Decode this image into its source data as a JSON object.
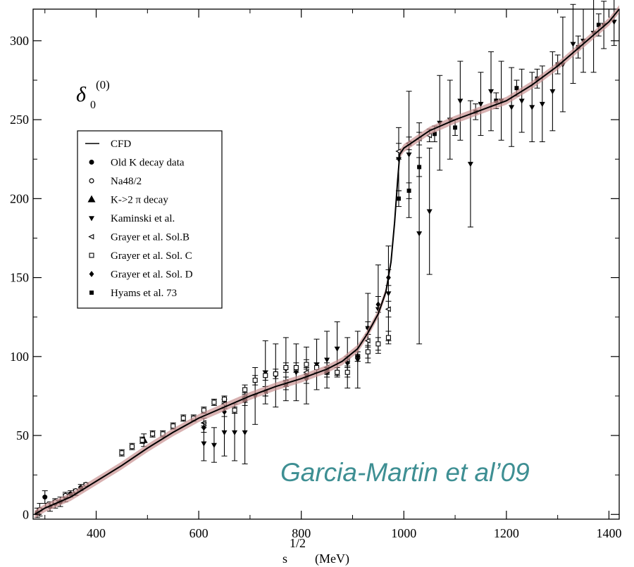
{
  "chart_data": {
    "type": "scatter",
    "title": "",
    "ylabel": "δ₀⁽⁰⁾",
    "xlabel": "s^1/2 (MeV)",
    "xlim": [
      277,
      1420
    ],
    "ylim": [
      -3,
      320
    ],
    "x_ticks": [
      400,
      600,
      800,
      1000,
      1200,
      1400
    ],
    "y_ticks": [
      0,
      50,
      100,
      150,
      200,
      250,
      300
    ],
    "annotation": "Garcia-Martin et al’09",
    "legend_position": "upper-left",
    "legend": [
      {
        "symbol": "line",
        "label": "CFD"
      },
      {
        "symbol": "filled-circle",
        "label": "Old K decay data"
      },
      {
        "symbol": "open-circle",
        "label": "Na48/2"
      },
      {
        "symbol": "filled-triangle-up",
        "label": "K->2 π  decay"
      },
      {
        "symbol": "filled-triangle-down",
        "label": "Kaminski et al."
      },
      {
        "symbol": "open-triangle-left",
        "label": "Grayer et al. Sol.B"
      },
      {
        "symbol": "open-square",
        "label": "Grayer et al. Sol. C"
      },
      {
        "symbol": "filled-diamond",
        "label": "Grayer et al. Sol. D"
      },
      {
        "symbol": "filled-square",
        "label": "Hyams et al. 73"
      }
    ],
    "cfd_curve": {
      "name": "CFD",
      "x": [
        280,
        300,
        350,
        400,
        450,
        500,
        550,
        600,
        650,
        700,
        750,
        800,
        850,
        880,
        910,
        930,
        950,
        965,
        975,
        982,
        988,
        992,
        1000,
        1050,
        1100,
        1150,
        1200,
        1250,
        1300,
        1350,
        1400,
        1420
      ],
      "y": [
        0,
        4,
        11,
        21,
        31,
        42,
        52,
        61,
        68,
        75,
        81,
        86,
        92,
        97,
        105,
        115,
        127,
        141,
        160,
        185,
        212,
        228,
        232,
        243,
        250,
        256,
        262,
        272,
        284,
        298,
        312,
        320
      ]
    },
    "series": [
      {
        "name": "Old K decay data",
        "marker": "filled-circle",
        "x": [
          285,
          290,
          300,
          310,
          320,
          330,
          340,
          350,
          360,
          370
        ],
        "y": [
          1,
          3,
          11,
          5,
          7,
          8,
          11,
          13,
          14,
          17
        ],
        "err": [
          3,
          4,
          4,
          3,
          3,
          3,
          3,
          2,
          2,
          2
        ]
      },
      {
        "name": "Na48/2",
        "marker": "open-circle",
        "x": [
          290,
          305,
          320,
          340,
          360,
          380
        ],
        "y": [
          3,
          6,
          8,
          12,
          15,
          19
        ],
        "err": [
          1,
          1,
          1,
          1,
          1,
          1
        ]
      },
      {
        "name": "K->2 π  decay",
        "marker": "filled-triangle-up",
        "x": [
          493
        ],
        "y": [
          47
        ],
        "err": [
          4
        ]
      },
      {
        "name": "Kaminski et al.",
        "marker": "filled-triangle-down",
        "x": [
          610,
          630,
          650,
          670,
          690,
          710,
          730,
          750,
          770,
          790,
          810,
          830,
          850,
          870,
          890,
          910,
          930,
          950,
          970,
          990,
          1010,
          1030,
          1050,
          1070,
          1090,
          1110,
          1130,
          1150,
          1170,
          1190,
          1210,
          1230,
          1250,
          1270,
          1290,
          1310,
          1330,
          1350,
          1370,
          1390,
          1410
        ],
        "y": [
          45,
          44,
          52,
          52,
          52,
          75,
          90,
          88,
          92,
          90,
          88,
          95,
          98,
          105,
          96,
          98,
          118,
          130,
          140,
          225,
          228,
          178,
          192,
          248,
          250,
          262,
          222,
          260,
          268,
          262,
          258,
          262,
          258,
          260,
          268,
          285,
          298,
          300,
          305,
          310,
          312
        ],
        "err": [
          11,
          11,
          15,
          18,
          20,
          18,
          20,
          20,
          20,
          18,
          18,
          16,
          18,
          17,
          16,
          18,
          22,
          28,
          30,
          20,
          40,
          70,
          40,
          30,
          25,
          25,
          40,
          20,
          25,
          25,
          25,
          20,
          22,
          24,
          25,
          30,
          25,
          20,
          25,
          15,
          15
        ]
      },
      {
        "name": "Grayer et al. Sol.B",
        "marker": "open-triangle-left",
        "x": [
          610,
          650,
          690,
          730,
          770,
          810,
          850,
          890,
          930,
          970,
          990,
          1010,
          1030,
          1050
        ],
        "y": [
          58,
          70,
          74,
          78,
          84,
          90,
          93,
          97,
          110,
          130,
          230,
          235,
          238,
          240
        ],
        "err": [
          3,
          3,
          3,
          3,
          3,
          3,
          3,
          3,
          4,
          5,
          5,
          4,
          4,
          4
        ]
      },
      {
        "name": "Grayer et al. Sol. C",
        "marker": "open-square",
        "x": [
          450,
          470,
          490,
          510,
          530,
          550,
          570,
          590,
          610,
          630,
          650,
          670,
          690,
          710,
          730,
          750,
          770,
          790,
          810,
          830,
          850,
          870,
          890,
          910,
          930,
          950,
          970
        ],
        "y": [
          39,
          43,
          47,
          51,
          51,
          56,
          61,
          61,
          66,
          71,
          73,
          66,
          79,
          85,
          88,
          89,
          93,
          93,
          95,
          93,
          90,
          90,
          90,
          100,
          103,
          108,
          112
        ],
        "err": [
          2,
          2,
          2,
          2,
          2,
          2,
          2,
          2,
          2,
          2,
          2,
          2,
          3,
          3,
          3,
          3,
          3,
          3,
          3,
          3,
          3,
          3,
          3,
          3,
          4,
          4,
          4
        ]
      },
      {
        "name": "Grayer et al. Sol. D",
        "marker": "filled-diamond",
        "x": [
          610,
          650,
          690,
          730,
          770,
          810,
          850,
          890,
          910,
          930,
          950,
          970
        ],
        "y": [
          55,
          65,
          72,
          78,
          82,
          86,
          90,
          96,
          100,
          118,
          133,
          150
        ],
        "err": [
          3,
          3,
          3,
          3,
          3,
          3,
          3,
          3,
          3,
          4,
          5,
          5
        ]
      },
      {
        "name": "Hyams et al. 73",
        "marker": "filled-square",
        "x": [
          990,
          1010,
          1030,
          1060,
          1100,
          1140,
          1180,
          1220,
          1260,
          1300,
          1340,
          1380
        ],
        "y": [
          200,
          205,
          220,
          241,
          245,
          255,
          262,
          270,
          276,
          285,
          296,
          310
        ],
        "err": [
          5,
          5,
          6,
          5,
          5,
          5,
          5,
          5,
          6,
          6,
          7,
          7
        ]
      }
    ]
  }
}
